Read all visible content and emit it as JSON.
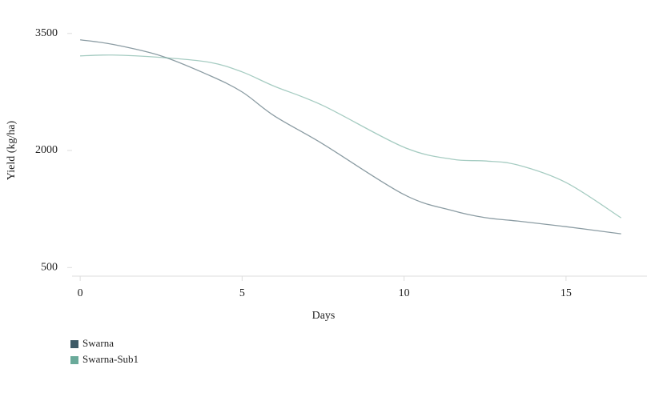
{
  "chart_data": {
    "type": "line",
    "x_label": "Days",
    "y_label": "Yield (kg/ha)",
    "x": [
      0,
      1,
      2.5,
      4,
      5,
      6,
      7.5,
      10,
      11.5,
      12.5,
      13.5,
      15,
      16.7
    ],
    "series": [
      {
        "name": "Swarna",
        "color": "#3d5a66",
        "values": [
          3418,
          3360,
          3212,
          2960,
          2750,
          2442,
          2082,
          1435,
          1230,
          1140,
          1096,
          1024,
          932
        ]
      },
      {
        "name": "Swarna-Sub1",
        "color": "#6aaa9a",
        "values": [
          3212,
          3223,
          3192,
          3130,
          3007,
          2822,
          2575,
          2041,
          1887,
          1866,
          1815,
          1589,
          1137
        ]
      }
    ],
    "xlim": [
      -0.25,
      17.5
    ],
    "ylim": [
      390,
      3600
    ],
    "xticks": [
      0,
      5,
      10,
      15
    ],
    "yticks": [
      500,
      2000,
      3500
    ],
    "grid": false
  }
}
